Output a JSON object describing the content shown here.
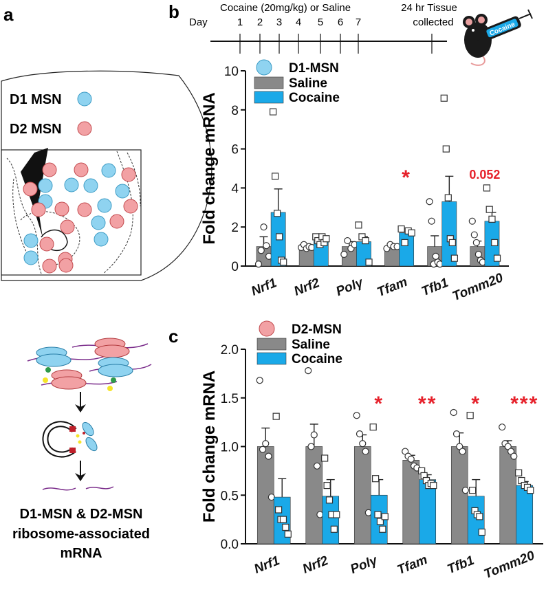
{
  "panels": {
    "a": "a",
    "b": "b",
    "c": "c"
  },
  "panel_a": {
    "legend": [
      {
        "label": "D1 MSN",
        "color": "#8fd3f0"
      },
      {
        "label": "D2 MSN",
        "color": "#f2a1a4"
      }
    ],
    "caption_lines": [
      "D1-MSN & D2-MSN",
      "ribosome-associated",
      "mRNA"
    ]
  },
  "timeline": {
    "day_label": "Day",
    "treatment_label": "Cocaine (20mg/kg) or Saline",
    "days": [
      "1",
      "2",
      "3",
      "4",
      "5",
      "6",
      "7"
    ],
    "tissue_label_line1": "24 hr Tissue",
    "tissue_label_line2": "collected",
    "syringe_label": "Cocaine"
  },
  "colors": {
    "saline": "#898989",
    "cocaine": "#1aa9e8",
    "d1": "#8fd3f0",
    "d2": "#f2a1a4",
    "significance": "#e6202a"
  },
  "chart_data": [
    {
      "type": "bar",
      "panel": "b",
      "ylabel": "Fold change mRNA",
      "ylim": [
        0,
        10
      ],
      "yticks": [
        "0",
        "2",
        "4",
        "6",
        "8",
        "10"
      ],
      "legend_cell": "D1-MSN",
      "categories": [
        "Nrf1",
        "Nrf2",
        "Polγ",
        "Tfam",
        "Tfb1",
        "Tomm20"
      ],
      "series": [
        {
          "name": "Saline",
          "values": [
            1.0,
            1.0,
            1.0,
            1.0,
            1.0,
            1.0
          ],
          "sem": [
            0.5,
            0.12,
            0.25,
            0.1,
            0.55,
            0.28
          ],
          "points": [
            [
              0.1,
              0.8,
              2.0,
              1.05,
              0.5
            ],
            [
              0.95,
              1.1,
              0.9,
              1.0,
              0.95
            ],
            [
              0.6,
              1.3,
              0.9,
              1.1
            ],
            [
              0.9,
              1.1,
              1.0,
              1.0
            ],
            [
              3.3,
              2.3,
              0.1,
              0.5,
              0.2,
              0.1
            ],
            [
              2.3,
              1.6,
              1.2,
              0.6,
              0.3,
              0.2
            ]
          ]
        },
        {
          "name": "Cocaine",
          "values": [
            2.75,
            1.3,
            1.25,
            1.7,
            3.3,
            2.3
          ],
          "sem": [
            1.2,
            0.12,
            0.25,
            0.25,
            1.3,
            0.45
          ],
          "points": [
            [
              7.9,
              4.6,
              2.7,
              1.5,
              0.3,
              0.2
            ],
            [
              1.5,
              1.3,
              1.1,
              1.5,
              1.2,
              1.4
            ],
            [
              2.1,
              1.5,
              1.3,
              0.2
            ],
            [
              1.9,
              1.2,
              1.8,
              1.7
            ],
            [
              8.6,
              6.0,
              3.5,
              1.4,
              1.2,
              0.4
            ],
            [
              4.0,
              2.9,
              2.4,
              1.2,
              0.4
            ]
          ]
        }
      ],
      "annotations": [
        {
          "category": "Tfam",
          "text": "*"
        },
        {
          "category": "Tomm20",
          "text": "0.052"
        }
      ]
    },
    {
      "type": "bar",
      "panel": "c",
      "ylabel": "Fold change mRNA",
      "ylim": [
        0,
        2.0
      ],
      "yticks": [
        "0.0",
        "0.5",
        "1.0",
        "1.5",
        "2.0"
      ],
      "legend_cell": "D2-MSN",
      "categories": [
        "Nrf1",
        "Nrf2",
        "Polγ",
        "Tfam",
        "Tfb1",
        "Tomm20"
      ],
      "series": [
        {
          "name": "Saline",
          "values": [
            1.0,
            1.0,
            1.0,
            0.86,
            1.0,
            1.0
          ],
          "sem": [
            0.19,
            0.23,
            0.12,
            0.05,
            0.14,
            0.06
          ],
          "points": [
            [
              1.68,
              0.97,
              1.03,
              0.9,
              0.48
            ],
            [
              1.78,
              1.0,
              1.12,
              0.8,
              0.3
            ],
            [
              1.32,
              1.13,
              1.03,
              0.95,
              0.32
            ],
            [
              0.95,
              0.9,
              0.87,
              0.8,
              0.78
            ],
            [
              1.35,
              1.13,
              1.0,
              0.95,
              0.55
            ],
            [
              1.2,
              1.03,
              1.0,
              0.95,
              0.9
            ]
          ]
        },
        {
          "name": "Cocaine",
          "values": [
            0.48,
            0.49,
            0.5,
            0.66,
            0.49,
            0.6
          ],
          "sem": [
            0.19,
            0.17,
            0.16,
            0.05,
            0.17,
            0.04
          ],
          "points": [
            [
              1.31,
              0.35,
              0.25,
              0.25,
              0.17,
              0.1
            ],
            [
              0.88,
              0.6,
              0.45,
              0.3,
              0.15,
              0.3
            ],
            [
              1.2,
              0.67,
              0.3,
              0.23,
              0.15,
              0.28
            ],
            [
              0.75,
              0.7,
              0.65,
              0.6,
              0.62,
              0.6
            ],
            [
              1.32,
              0.55,
              0.34,
              0.3,
              0.28,
              0.12
            ],
            [
              0.73,
              0.65,
              0.6,
              0.58,
              0.55
            ]
          ]
        }
      ],
      "annotations": [
        {
          "category": "Polγ",
          "text": "*"
        },
        {
          "category": "Tfam",
          "text": "**"
        },
        {
          "category": "Tfb1",
          "text": "*"
        },
        {
          "category": "Tomm20",
          "text": "***"
        }
      ]
    }
  ]
}
